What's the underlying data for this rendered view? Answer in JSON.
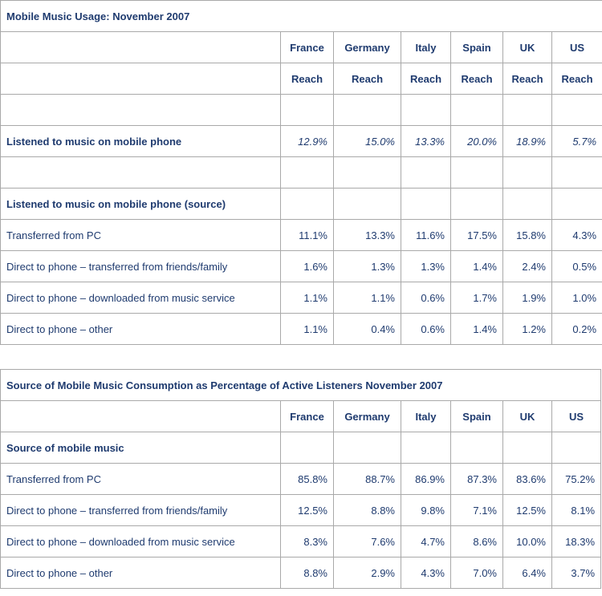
{
  "usage": {
    "title": "Mobile Music Usage: November 2007",
    "countries": [
      "France",
      "Germany",
      "Italy",
      "Spain",
      "UK",
      "US"
    ],
    "subheaders": [
      "Reach",
      "Reach",
      "Reach",
      "Reach",
      "Reach",
      "Reach"
    ],
    "listened": {
      "label": "Listened to music on mobile phone",
      "values": [
        "12.9%",
        "15.0%",
        "13.3%",
        "20.0%",
        "18.9%",
        "5.7%"
      ]
    },
    "source_heading": "Listened to music on mobile phone (source)",
    "rows": [
      {
        "label": "Transferred from PC",
        "values": [
          "11.1%",
          "13.3%",
          "11.6%",
          "17.5%",
          "15.8%",
          "4.3%"
        ]
      },
      {
        "label": "Direct to phone – transferred from friends/family",
        "values": [
          "1.6%",
          "1.3%",
          "1.3%",
          "1.4%",
          "2.4%",
          "0.5%"
        ]
      },
      {
        "label": "Direct to phone – downloaded from music service",
        "values": [
          "1.1%",
          "1.1%",
          "0.6%",
          "1.7%",
          "1.9%",
          "1.0%"
        ]
      },
      {
        "label": "Direct to phone – other",
        "values": [
          "1.1%",
          "0.4%",
          "0.6%",
          "1.4%",
          "1.2%",
          "0.2%"
        ]
      }
    ]
  },
  "consumption": {
    "title": "Source of Mobile Music Consumption as Percentage of Active Listeners November 2007",
    "countries": [
      "France",
      "Germany",
      "Italy",
      "Spain",
      "UK",
      "US"
    ],
    "source_heading": "Source of mobile music",
    "rows": [
      {
        "label": "Transferred from PC",
        "values": [
          "85.8%",
          "88.7%",
          "86.9%",
          "87.3%",
          "83.6%",
          "75.2%"
        ]
      },
      {
        "label": "Direct to phone – transferred from friends/family",
        "values": [
          "12.5%",
          "8.8%",
          "9.8%",
          "7.1%",
          "12.5%",
          "8.1%"
        ]
      },
      {
        "label": "Direct to phone – downloaded from music service",
        "values": [
          "8.3%",
          "7.6%",
          "4.7%",
          "8.6%",
          "10.0%",
          "18.3%"
        ]
      },
      {
        "label": "Direct to phone – other",
        "values": [
          "8.8%",
          "2.9%",
          "4.3%",
          "7.0%",
          "6.4%",
          "3.7%"
        ]
      }
    ]
  }
}
